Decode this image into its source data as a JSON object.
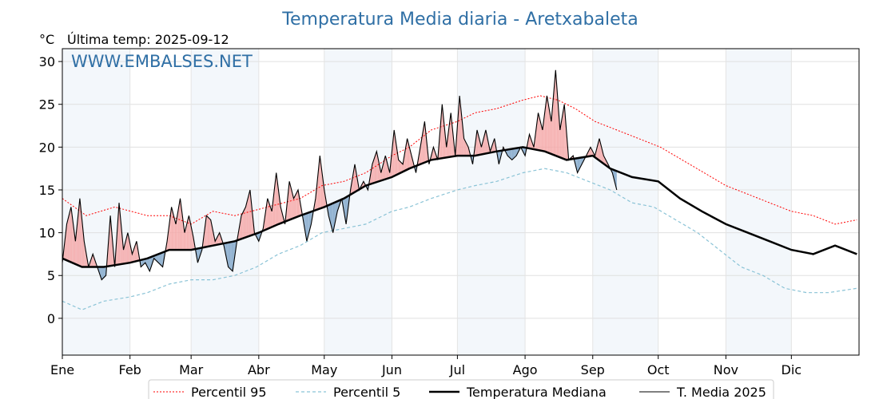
{
  "chart_data": {
    "type": "line",
    "title": "Temperatura Media diaria - Aretxabaleta",
    "unit_label": "°C",
    "last_update_label": "Última temp: 2025-09-12",
    "watermark": "WWW.EMBALSES.NET",
    "ylim": [
      -4.3,
      31.5
    ],
    "yticks": [
      0,
      5,
      10,
      15,
      20,
      25,
      30
    ],
    "months": [
      "Ene",
      "Feb",
      "Mar",
      "Abr",
      "May",
      "Jun",
      "Jul",
      "Ago",
      "Sep",
      "Oct",
      "Nov",
      "Dic"
    ],
    "grid": true,
    "legend_position": "bottom",
    "series": [
      {
        "name": "Percentil 95",
        "color": "#ff0000",
        "style": "dotted",
        "points": [
          [
            1,
            14.0
          ],
          [
            12,
            12.0
          ],
          [
            25,
            13.0
          ],
          [
            40,
            12.0
          ],
          [
            50,
            12.0
          ],
          [
            60,
            11.0
          ],
          [
            70,
            12.5
          ],
          [
            80,
            12.0
          ],
          [
            95,
            13.0
          ],
          [
            110,
            14.0
          ],
          [
            120,
            15.5
          ],
          [
            130,
            16.0
          ],
          [
            140,
            17.0
          ],
          [
            152,
            19.0
          ],
          [
            160,
            20.0
          ],
          [
            170,
            22.0
          ],
          [
            182,
            23.0
          ],
          [
            190,
            24.0
          ],
          [
            200,
            24.5
          ],
          [
            212,
            25.5
          ],
          [
            220,
            26.0
          ],
          [
            228,
            25.5
          ],
          [
            236,
            24.5
          ],
          [
            245,
            23.0
          ],
          [
            255,
            22.0
          ],
          [
            265,
            21.0
          ],
          [
            275,
            20.0
          ],
          [
            285,
            18.5
          ],
          [
            295,
            17.0
          ],
          [
            305,
            15.5
          ],
          [
            315,
            14.5
          ],
          [
            325,
            13.5
          ],
          [
            335,
            12.5
          ],
          [
            345,
            12.0
          ],
          [
            355,
            11.0
          ],
          [
            365,
            11.5
          ]
        ]
      },
      {
        "name": "Percentil 5",
        "color": "#8ac3d6",
        "style": "dashed",
        "points": [
          [
            1,
            2.0
          ],
          [
            10,
            1.0
          ],
          [
            20,
            2.0
          ],
          [
            32,
            2.5
          ],
          [
            40,
            3.0
          ],
          [
            50,
            4.0
          ],
          [
            60,
            4.5
          ],
          [
            70,
            4.5
          ],
          [
            80,
            5.0
          ],
          [
            90,
            6.0
          ],
          [
            100,
            7.5
          ],
          [
            110,
            8.5
          ],
          [
            120,
            10.0
          ],
          [
            130,
            10.5
          ],
          [
            140,
            11.0
          ],
          [
            152,
            12.5
          ],
          [
            160,
            13.0
          ],
          [
            170,
            14.0
          ],
          [
            182,
            15.0
          ],
          [
            190,
            15.5
          ],
          [
            200,
            16.0
          ],
          [
            212,
            17.0
          ],
          [
            222,
            17.5
          ],
          [
            232,
            17.0
          ],
          [
            242,
            16.0
          ],
          [
            252,
            15.0
          ],
          [
            262,
            13.5
          ],
          [
            272,
            13.0
          ],
          [
            282,
            11.5
          ],
          [
            292,
            10.0
          ],
          [
            302,
            8.0
          ],
          [
            312,
            6.0
          ],
          [
            322,
            5.0
          ],
          [
            332,
            3.5
          ],
          [
            342,
            3.0
          ],
          [
            352,
            3.0
          ],
          [
            365,
            3.5
          ]
        ]
      },
      {
        "name": "Temperatura Mediana",
        "color": "#000000",
        "style": "solid-thick",
        "points": [
          [
            1,
            7.0
          ],
          [
            10,
            6.0
          ],
          [
            20,
            6.0
          ],
          [
            32,
            6.5
          ],
          [
            40,
            7.0
          ],
          [
            50,
            8.0
          ],
          [
            60,
            8.0
          ],
          [
            70,
            8.5
          ],
          [
            80,
            9.0
          ],
          [
            91,
            10.0
          ],
          [
            100,
            11.0
          ],
          [
            110,
            12.0
          ],
          [
            121,
            13.0
          ],
          [
            130,
            14.0
          ],
          [
            140,
            15.5
          ],
          [
            152,
            16.5
          ],
          [
            160,
            17.5
          ],
          [
            170,
            18.5
          ],
          [
            182,
            19.0
          ],
          [
            190,
            19.0
          ],
          [
            200,
            19.5
          ],
          [
            212,
            20.0
          ],
          [
            222,
            19.5
          ],
          [
            232,
            18.5
          ],
          [
            244,
            19.0
          ],
          [
            252,
            17.5
          ],
          [
            262,
            16.5
          ],
          [
            274,
            16.0
          ],
          [
            284,
            14.0
          ],
          [
            294,
            12.5
          ],
          [
            305,
            11.0
          ],
          [
            315,
            10.0
          ],
          [
            325,
            9.0
          ],
          [
            335,
            8.0
          ],
          [
            345,
            7.5
          ],
          [
            355,
            8.5
          ],
          [
            365,
            7.5
          ]
        ]
      },
      {
        "name": "T. Media 2025",
        "color": "#000000",
        "style": "solid-thin",
        "points": [
          [
            1,
            6.5
          ],
          [
            3,
            11.0
          ],
          [
            5,
            13.0
          ],
          [
            7,
            9.0
          ],
          [
            9,
            14.0
          ],
          [
            11,
            9.0
          ],
          [
            13,
            6.0
          ],
          [
            15,
            7.5
          ],
          [
            17,
            6.0
          ],
          [
            19,
            4.5
          ],
          [
            21,
            5.0
          ],
          [
            23,
            12.0
          ],
          [
            25,
            6.0
          ],
          [
            27,
            13.5
          ],
          [
            29,
            8.0
          ],
          [
            31,
            10.0
          ],
          [
            33,
            7.5
          ],
          [
            35,
            9.0
          ],
          [
            37,
            6.0
          ],
          [
            39,
            6.5
          ],
          [
            41,
            5.5
          ],
          [
            43,
            7.0
          ],
          [
            45,
            6.5
          ],
          [
            47,
            6.0
          ],
          [
            49,
            9.0
          ],
          [
            51,
            13.0
          ],
          [
            53,
            11.0
          ],
          [
            55,
            14.0
          ],
          [
            57,
            10.0
          ],
          [
            59,
            12.0
          ],
          [
            61,
            9.5
          ],
          [
            63,
            6.5
          ],
          [
            65,
            8.0
          ],
          [
            67,
            12.0
          ],
          [
            69,
            11.5
          ],
          [
            71,
            9.0
          ],
          [
            73,
            10.0
          ],
          [
            75,
            8.5
          ],
          [
            77,
            6.0
          ],
          [
            79,
            5.5
          ],
          [
            81,
            9.0
          ],
          [
            83,
            12.0
          ],
          [
            85,
            13.0
          ],
          [
            87,
            15.0
          ],
          [
            89,
            10.0
          ],
          [
            91,
            9.0
          ],
          [
            93,
            10.5
          ],
          [
            95,
            14.0
          ],
          [
            97,
            12.5
          ],
          [
            99,
            17.0
          ],
          [
            101,
            13.0
          ],
          [
            103,
            11.0
          ],
          [
            105,
            16.0
          ],
          [
            107,
            14.0
          ],
          [
            109,
            15.0
          ],
          [
            111,
            12.0
          ],
          [
            113,
            9.0
          ],
          [
            115,
            11.0
          ],
          [
            117,
            14.0
          ],
          [
            119,
            19.0
          ],
          [
            121,
            15.0
          ],
          [
            123,
            12.0
          ],
          [
            125,
            10.0
          ],
          [
            127,
            12.5
          ],
          [
            129,
            14.0
          ],
          [
            131,
            11.0
          ],
          [
            133,
            15.0
          ],
          [
            135,
            18.0
          ],
          [
            137,
            15.0
          ],
          [
            139,
            16.0
          ],
          [
            141,
            15.0
          ],
          [
            143,
            18.0
          ],
          [
            145,
            19.5
          ],
          [
            147,
            17.0
          ],
          [
            149,
            19.0
          ],
          [
            151,
            17.0
          ],
          [
            153,
            22.0
          ],
          [
            155,
            18.5
          ],
          [
            157,
            18.0
          ],
          [
            159,
            21.0
          ],
          [
            161,
            19.0
          ],
          [
            163,
            17.0
          ],
          [
            165,
            20.0
          ],
          [
            167,
            23.0
          ],
          [
            169,
            18.0
          ],
          [
            171,
            20.0
          ],
          [
            173,
            18.5
          ],
          [
            175,
            25.0
          ],
          [
            177,
            20.0
          ],
          [
            179,
            24.0
          ],
          [
            181,
            19.0
          ],
          [
            183,
            26.0
          ],
          [
            185,
            21.0
          ],
          [
            187,
            20.0
          ],
          [
            189,
            18.0
          ],
          [
            191,
            22.0
          ],
          [
            193,
            20.0
          ],
          [
            195,
            22.0
          ],
          [
            197,
            19.5
          ],
          [
            199,
            21.0
          ],
          [
            201,
            18.0
          ],
          [
            203,
            20.0
          ],
          [
            205,
            19.0
          ],
          [
            207,
            18.5
          ],
          [
            209,
            19.0
          ],
          [
            211,
            20.0
          ],
          [
            213,
            19.0
          ],
          [
            215,
            21.5
          ],
          [
            217,
            20.0
          ],
          [
            219,
            24.0
          ],
          [
            221,
            22.0
          ],
          [
            223,
            26.0
          ],
          [
            225,
            23.0
          ],
          [
            227,
            29.0
          ],
          [
            229,
            22.0
          ],
          [
            231,
            25.0
          ],
          [
            233,
            18.5
          ],
          [
            235,
            19.0
          ],
          [
            237,
            17.0
          ],
          [
            239,
            18.0
          ],
          [
            241,
            19.0
          ],
          [
            243,
            20.0
          ],
          [
            245,
            19.0
          ],
          [
            247,
            21.0
          ],
          [
            249,
            19.0
          ],
          [
            251,
            18.0
          ],
          [
            253,
            17.0
          ],
          [
            255,
            15.0
          ]
        ]
      }
    ]
  }
}
